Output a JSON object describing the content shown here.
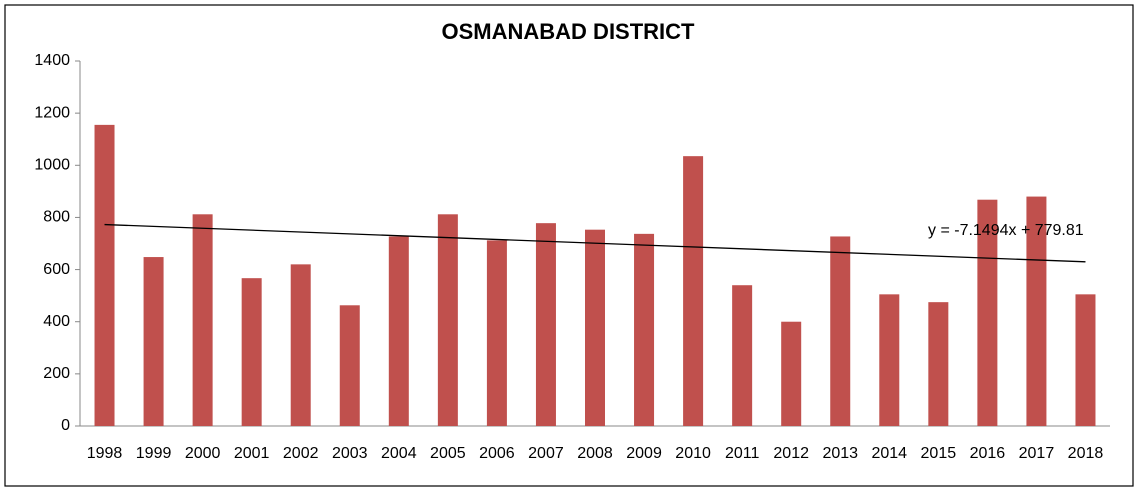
{
  "chart_data": {
    "type": "bar",
    "title": "OSMANABAD DISTRICT",
    "categories": [
      "1998",
      "1999",
      "2000",
      "2001",
      "2002",
      "2003",
      "2004",
      "2005",
      "2006",
      "2007",
      "2008",
      "2009",
      "2010",
      "2011",
      "2012",
      "2013",
      "2014",
      "2015",
      "2016",
      "2017",
      "2018"
    ],
    "values": [
      1155,
      648,
      812,
      567,
      620,
      463,
      727,
      812,
      712,
      778,
      753,
      737,
      1035,
      540,
      400,
      727,
      505,
      475,
      868,
      880,
      505
    ],
    "color": "#c0504d",
    "ylim": [
      0,
      1400
    ],
    "yticks": [
      0,
      200,
      400,
      600,
      800,
      1000,
      1200,
      1400
    ],
    "grid": false,
    "trendline": {
      "slope": -7.1494,
      "intercept": 779.81,
      "label": "y = -7.1494x + 779.81"
    }
  }
}
